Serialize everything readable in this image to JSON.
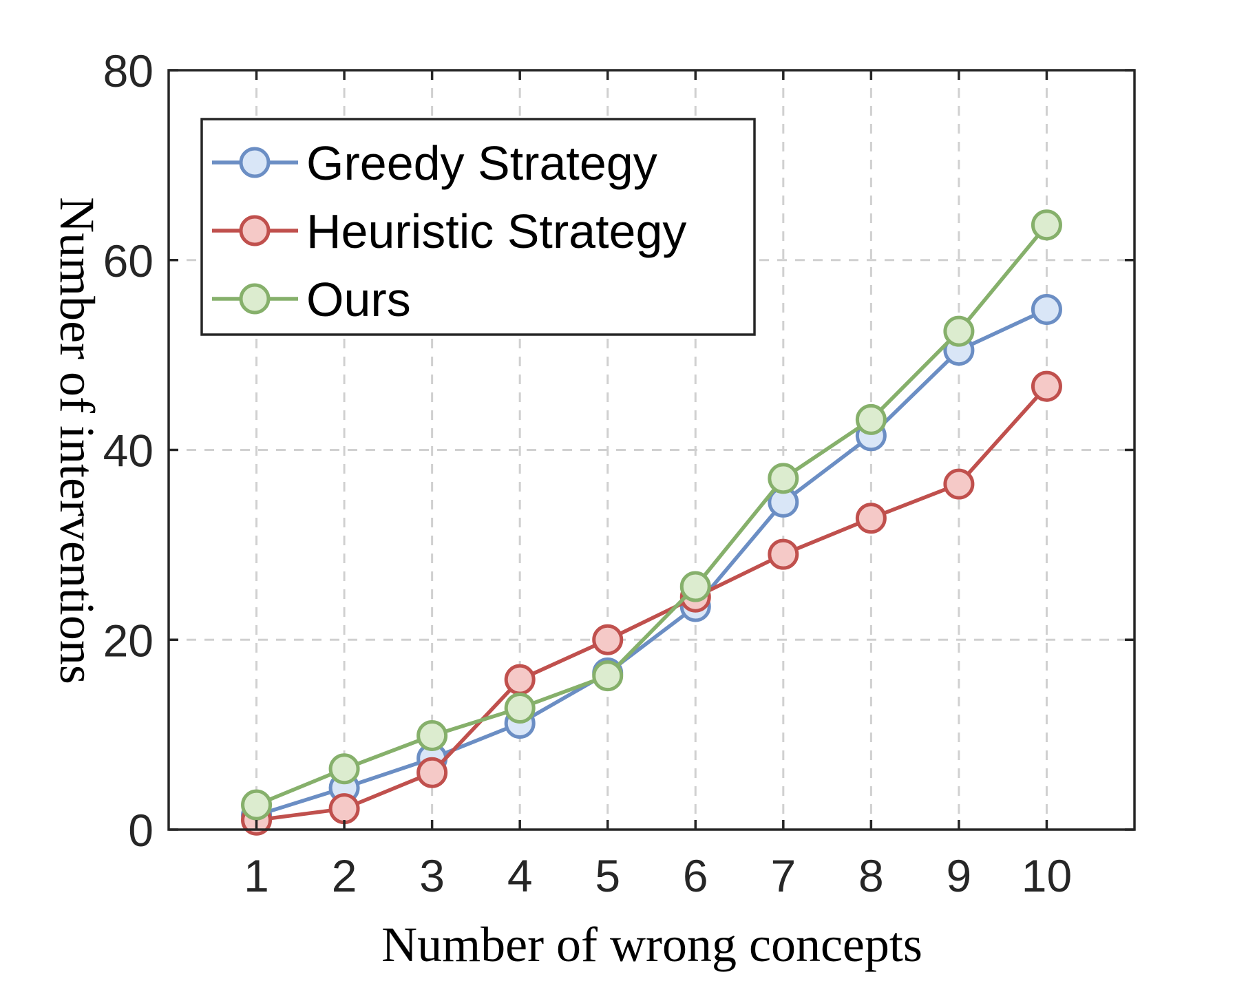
{
  "chart_data": {
    "type": "line",
    "xlabel": "Number of wrong concepts",
    "ylabel": "Number of interventions",
    "x": [
      1,
      2,
      3,
      4,
      5,
      6,
      7,
      8,
      9,
      10
    ],
    "xlim": [
      0,
      11
    ],
    "ylim": [
      0,
      80
    ],
    "xticks": [
      1,
      2,
      3,
      4,
      5,
      6,
      7,
      8,
      9,
      10
    ],
    "yticks": [
      0,
      20,
      40,
      60,
      80
    ],
    "grid": true,
    "legend_position": "top-left",
    "series": [
      {
        "name": "Greedy Strategy",
        "values": [
          1.5,
          4.4,
          7.5,
          11.2,
          16.5,
          23.5,
          34.5,
          41.5,
          50.5,
          54.8
        ],
        "color": "#6b8ec4",
        "marker_fill": "#d9e6f7"
      },
      {
        "name": "Heuristic Strategy",
        "values": [
          1.0,
          2.2,
          6.0,
          15.8,
          20.0,
          24.5,
          29.0,
          32.8,
          36.4,
          46.7
        ],
        "color": "#c0504d",
        "marker_fill": "#f5c9c7"
      },
      {
        "name": "Ours",
        "values": [
          2.6,
          6.4,
          9.9,
          12.8,
          16.2,
          25.6,
          37.0,
          43.2,
          52.5,
          63.7
        ],
        "color": "#86b06b",
        "marker_fill": "#dceccf"
      }
    ]
  }
}
